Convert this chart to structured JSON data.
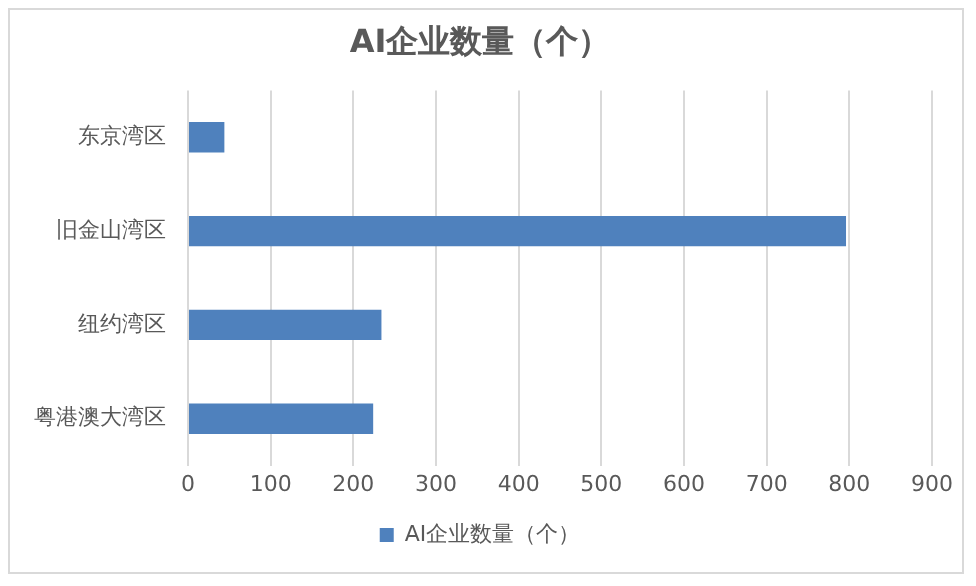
{
  "chart_data": {
    "type": "bar",
    "orientation": "horizontal",
    "title": "AI企业数量（个）",
    "categories": [
      "东京湾区",
      "旧金山湾区",
      "纽约湾区",
      "粤港澳大湾区"
    ],
    "series": [
      {
        "name": "AI企业数量（个）",
        "color": "#4f81bd",
        "values": [
          44,
          796,
          234,
          224
        ]
      }
    ],
    "xlim": [
      0,
      900
    ],
    "xticks": [
      0,
      100,
      200,
      300,
      400,
      500,
      600,
      700,
      800,
      900
    ],
    "grid": "x",
    "legend": "bottom"
  }
}
